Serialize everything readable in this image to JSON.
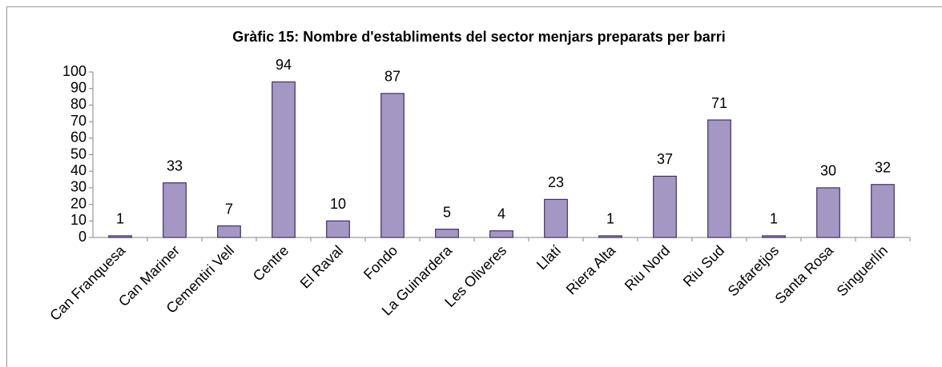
{
  "chart_data": {
    "type": "bar",
    "title": "Gràfic 15: Nombre d'establiments del sector menjars preparats per barri",
    "categories": [
      "Can Franquesa",
      "Can Mariner",
      "Cementiri Vell",
      "Centre",
      "El Raval",
      "Fondo",
      "La Guinardera",
      "Les Oliveres",
      "Llatí",
      "Riera Alta",
      "Riu Nord",
      "Riu Sud",
      "Safaretjos",
      "Santa Rosa",
      "Singuerlín"
    ],
    "values": [
      1,
      33,
      7,
      94,
      10,
      87,
      5,
      4,
      23,
      1,
      37,
      71,
      1,
      30,
      32
    ],
    "color": "#a497c4",
    "ylim": [
      0,
      100
    ],
    "yticks": [
      0,
      10,
      20,
      30,
      40,
      50,
      60,
      70,
      80,
      90,
      100
    ],
    "grid": false
  }
}
